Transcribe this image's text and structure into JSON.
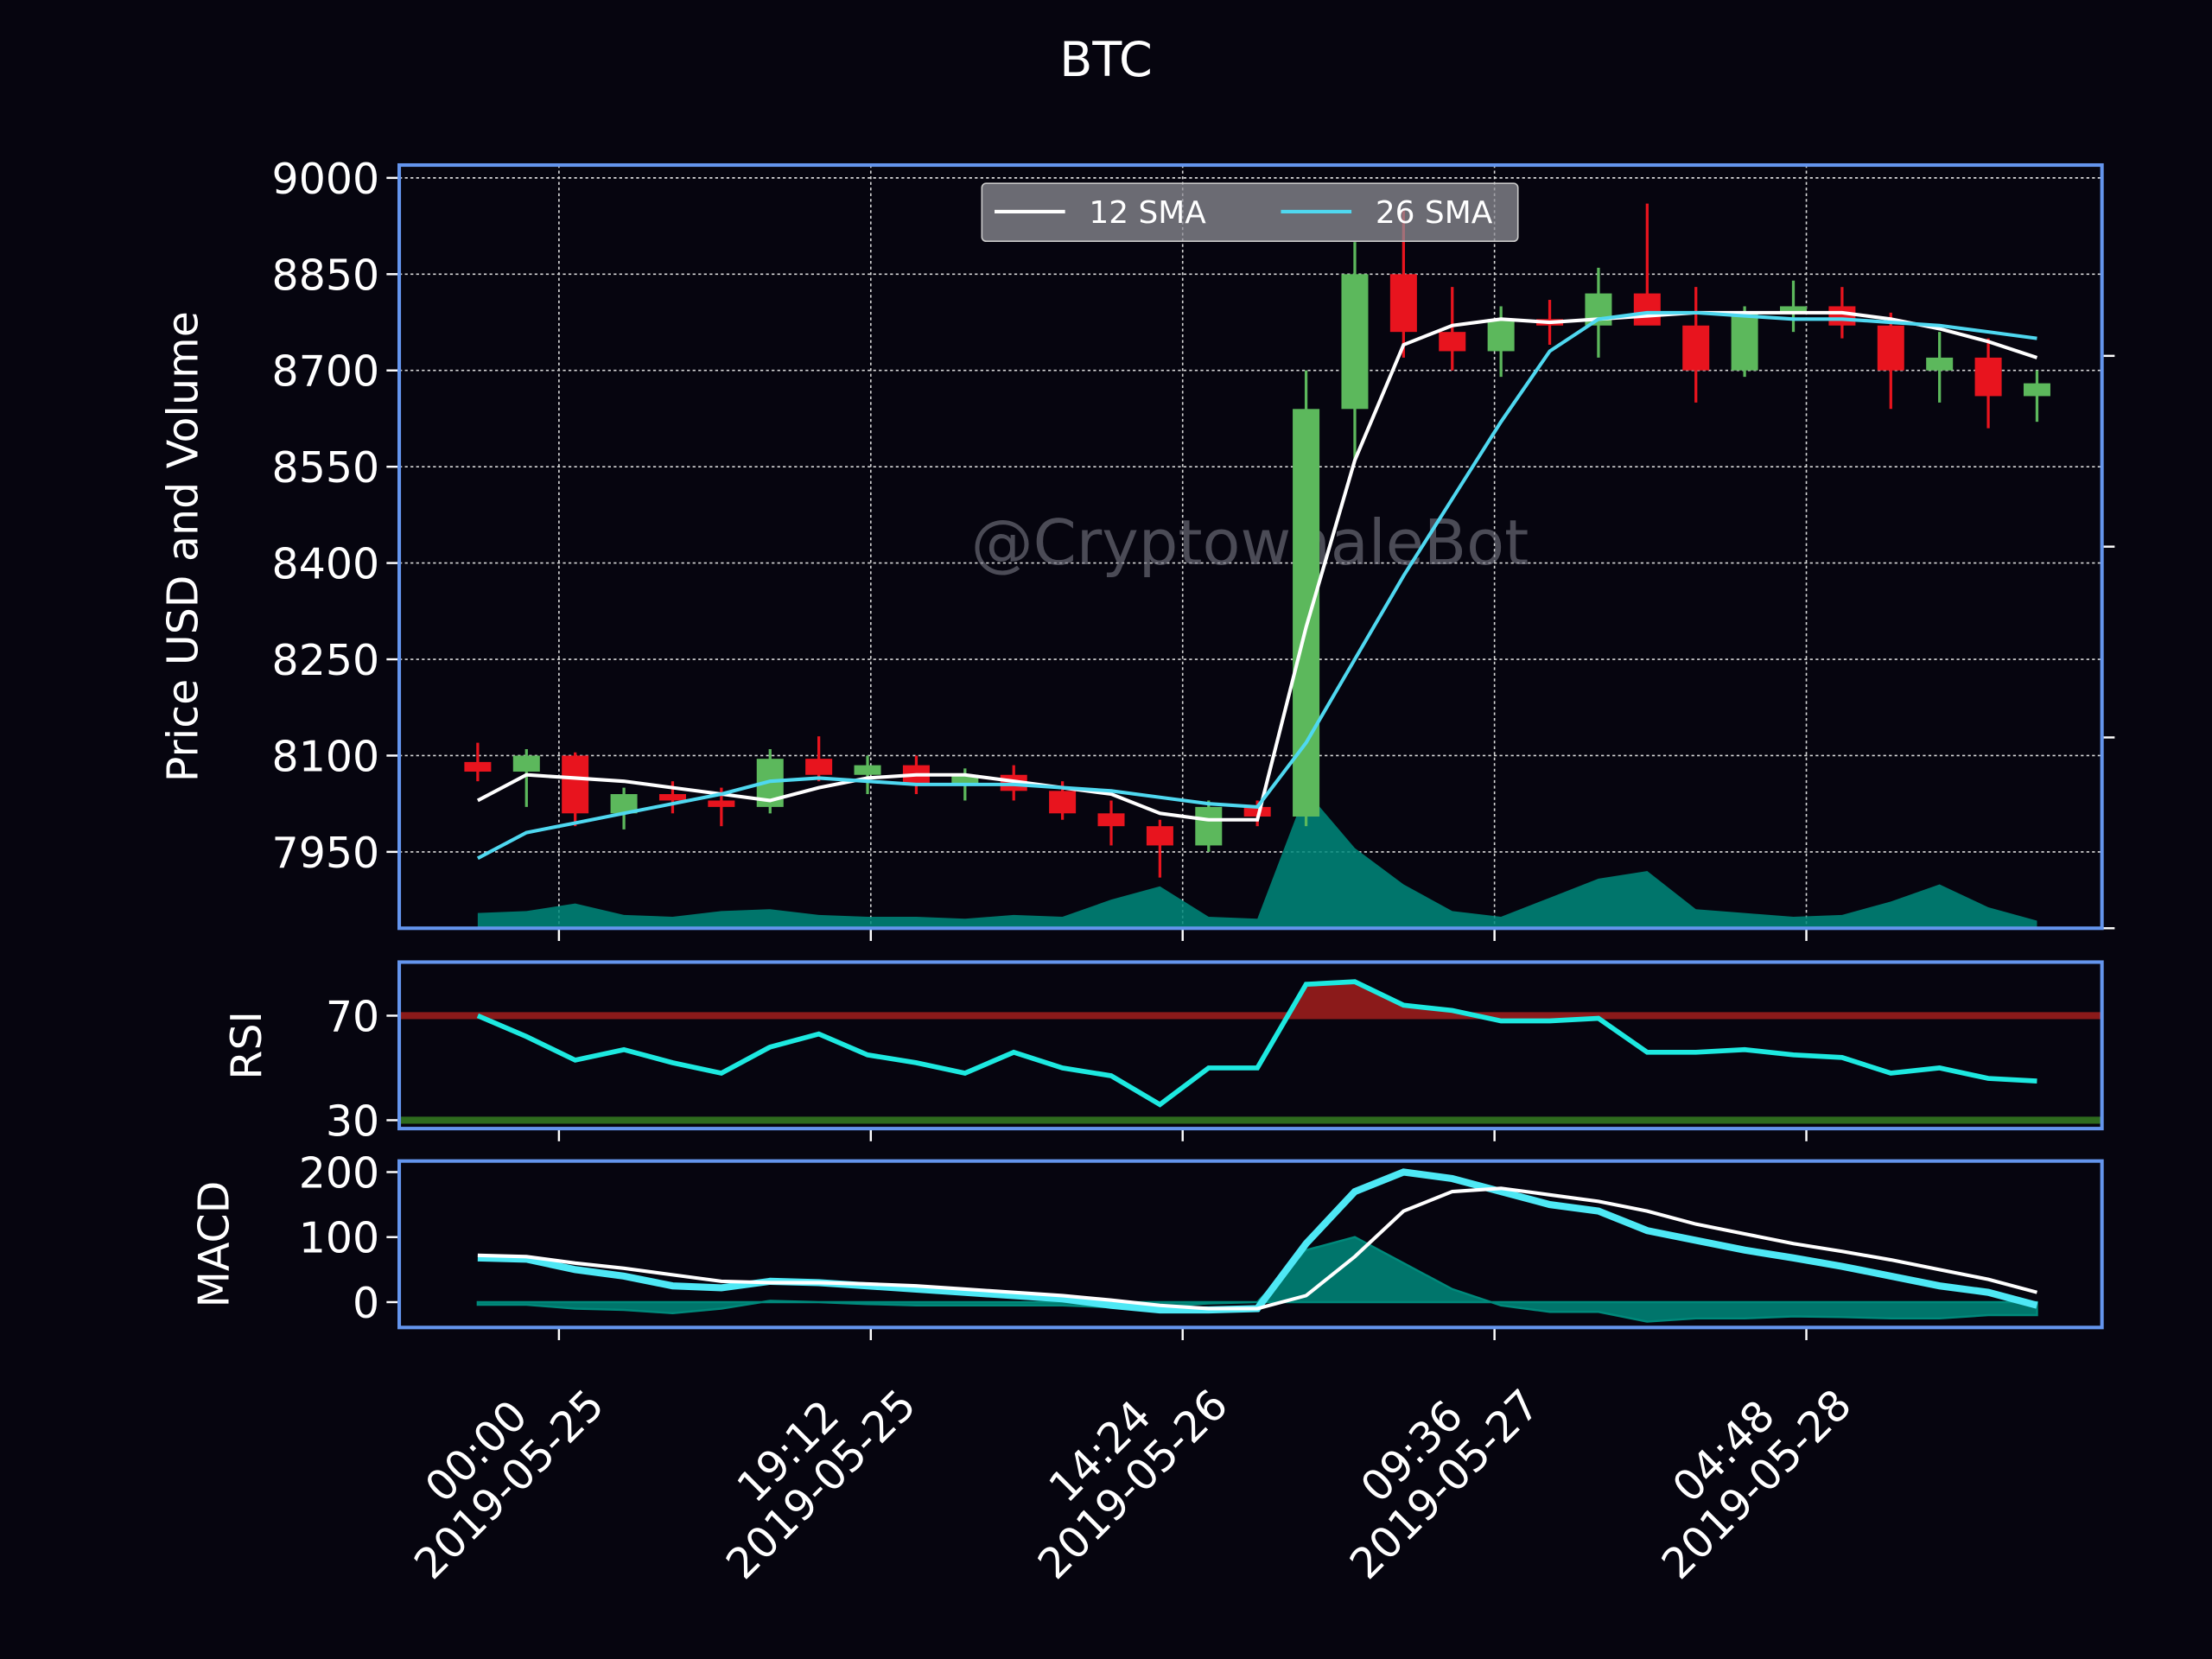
{
  "chart_data": [
    {
      "type": "candlestick",
      "title": "BTC",
      "ylabel": "Price USD and Volume",
      "watermark": "@CryptowhaleBot",
      "x": [
        "2019-05-24 19:00",
        "2019-05-24 22:00",
        "2019-05-25 01:00",
        "2019-05-25 04:00",
        "2019-05-25 07:00",
        "2019-05-25 10:00",
        "2019-05-25 13:00",
        "2019-05-25 16:00",
        "2019-05-25 19:00",
        "2019-05-25 22:00",
        "2019-05-26 01:00",
        "2019-05-26 04:00",
        "2019-05-26 07:00",
        "2019-05-26 10:00",
        "2019-05-26 13:00",
        "2019-05-26 16:00",
        "2019-05-26 19:00",
        "2019-05-26 22:00",
        "2019-05-27 01:00",
        "2019-05-27 04:00",
        "2019-05-27 07:00",
        "2019-05-27 10:00",
        "2019-05-27 13:00",
        "2019-05-27 16:00",
        "2019-05-27 19:00",
        "2019-05-27 22:00",
        "2019-05-28 01:00",
        "2019-05-28 04:00",
        "2019-05-28 07:00",
        "2019-05-28 10:00",
        "2019-05-28 13:00",
        "2019-05-28 16:00",
        "2019-05-28 19:00"
      ],
      "open": [
        8090,
        8075,
        8100,
        8010,
        8040,
        8030,
        8020,
        8095,
        8070,
        8085,
        8055,
        8070,
        8045,
        8010,
        7990,
        7960,
        8020,
        8005,
        8640,
        8850,
        8760,
        8730,
        8780,
        8770,
        8820,
        8770,
        8700,
        8790,
        8800,
        8770,
        8700,
        8720,
        8660
      ],
      "high": [
        8120,
        8110,
        8105,
        8050,
        8060,
        8050,
        8110,
        8130,
        8100,
        8100,
        8080,
        8085,
        8060,
        8030,
        8000,
        8030,
        8030,
        8700,
        8900,
        8950,
        8830,
        8800,
        8810,
        8860,
        8960,
        8830,
        8800,
        8840,
        8830,
        8790,
        8760,
        8750,
        8700
      ],
      "low": [
        8060,
        8020,
        7990,
        7985,
        8010,
        7990,
        8010,
        8060,
        8040,
        8040,
        8030,
        8030,
        8000,
        7960,
        7910,
        7950,
        7990,
        7990,
        8560,
        8720,
        8700,
        8690,
        8740,
        8720,
        8780,
        8650,
        8690,
        8760,
        8750,
        8640,
        8650,
        8610,
        8620
      ],
      "close": [
        8075,
        8100,
        8010,
        8040,
        8030,
        8020,
        8095,
        8070,
        8085,
        8055,
        8070,
        8045,
        8010,
        7990,
        7960,
        8020,
        8005,
        8640,
        8850,
        8760,
        8730,
        8780,
        8770,
        8820,
        8770,
        8700,
        8790,
        8800,
        8770,
        8700,
        8720,
        8660,
        8680
      ],
      "up_color": "#5cb85c",
      "down_color": "#e8141e",
      "series": [
        {
          "name": "12 SMA",
          "color": "#ffffff",
          "values": [
            8030,
            8070,
            8065,
            8060,
            8050,
            8040,
            8030,
            8050,
            8065,
            8070,
            8070,
            8060,
            8050,
            8040,
            8010,
            8000,
            8000,
            8300,
            8560,
            8740,
            8770,
            8780,
            8775,
            8780,
            8785,
            8790,
            8790,
            8790,
            8790,
            8780,
            8765,
            8745,
            8720
          ]
        },
        {
          "name": "26 SMA",
          "color": "#4fd8f0",
          "values": [
            7940,
            7980,
            7995,
            8010,
            8025,
            8040,
            8060,
            8065,
            8060,
            8055,
            8055,
            8055,
            8050,
            8045,
            8035,
            8025,
            8020,
            8120,
            8250,
            8380,
            8500,
            8620,
            8730,
            8780,
            8790,
            8790,
            8785,
            8780,
            8780,
            8775,
            8770,
            8760,
            8750
          ]
        }
      ],
      "volume": {
        "axis": "y2",
        "color": "#00897b",
        "values": [
          80,
          90,
          130,
          70,
          60,
          90,
          100,
          70,
          60,
          60,
          50,
          70,
          60,
          150,
          220,
          60,
          50,
          720,
          420,
          230,
          90,
          60,
          160,
          260,
          300,
          100,
          80,
          60,
          70,
          140,
          230,
          110,
          40
        ]
      },
      "xlim": [
        "2019-05-24 14:10",
        "2019-05-28 23:00"
      ],
      "xticks": [
        {
          "value": "2019-05-25 00:00",
          "label": "00:00\n2019-05-25"
        },
        {
          "value": "2019-05-25 19:12",
          "label": "19:12\n2019-05-25"
        },
        {
          "value": "2019-05-26 14:24",
          "label": "14:24\n2019-05-26"
        },
        {
          "value": "2019-05-27 09:36",
          "label": "09:36\n2019-05-27"
        },
        {
          "value": "2019-05-28 04:48",
          "label": "04:48\n2019-05-28"
        }
      ],
      "ylim": [
        7831,
        9020
      ],
      "yticks": [
        7950,
        8100,
        8250,
        8400,
        8550,
        8700,
        8850,
        9000
      ],
      "y2lim": [
        0,
        4000
      ],
      "y2ticks": [
        0,
        1000,
        2000,
        3000
      ],
      "grid": true,
      "legend": "upper center"
    },
    {
      "type": "rsi",
      "ylabel": "RSI",
      "color": "#1de9e0",
      "values": [
        70,
        62,
        53,
        57,
        52,
        48,
        58,
        63,
        55,
        52,
        48,
        56,
        50,
        47,
        36,
        50,
        50,
        82,
        83,
        74,
        72,
        68,
        68,
        69,
        56,
        56,
        57,
        55,
        54,
        48,
        50,
        46,
        45
      ],
      "hlines": [
        {
          "value": 70,
          "color": "#8b1a1a"
        },
        {
          "value": 30,
          "color": "#2e6b1e"
        }
      ],
      "ylim": [
        26.8,
        90.5
      ],
      "yticks": [
        30,
        70
      ]
    },
    {
      "type": "macd",
      "ylabel": "MACD",
      "macd": {
        "color": "#4ee8f5",
        "values": [
          68,
          66,
          50,
          40,
          25,
          22,
          32,
          30,
          25,
          20,
          15,
          10,
          5,
          -5,
          -12,
          -12,
          -10,
          90,
          170,
          200,
          190,
          170,
          150,
          140,
          110,
          95,
          80,
          68,
          55,
          40,
          25,
          15,
          -5
        ]
      },
      "signal": {
        "color": "#ffffff",
        "values": [
          72,
          70,
          60,
          52,
          42,
          32,
          30,
          30,
          28,
          25,
          20,
          15,
          10,
          3,
          -5,
          -10,
          -10,
          10,
          70,
          140,
          170,
          175,
          165,
          155,
          140,
          120,
          105,
          90,
          78,
          65,
          50,
          35,
          15
        ]
      },
      "histogram": {
        "color": "#00897b",
        "values": [
          -4,
          -4,
          -10,
          -12,
          -17,
          -10,
          2,
          0,
          -3,
          -5,
          -5,
          -5,
          -5,
          -8,
          -7,
          -2,
          0,
          80,
          100,
          60,
          20,
          -5,
          -15,
          -15,
          -30,
          -25,
          -25,
          -22,
          -23,
          -25,
          -25,
          -20,
          -20
        ]
      },
      "ylim": [
        -39,
        217
      ],
      "yticks": [
        0,
        100,
        200
      ]
    }
  ]
}
